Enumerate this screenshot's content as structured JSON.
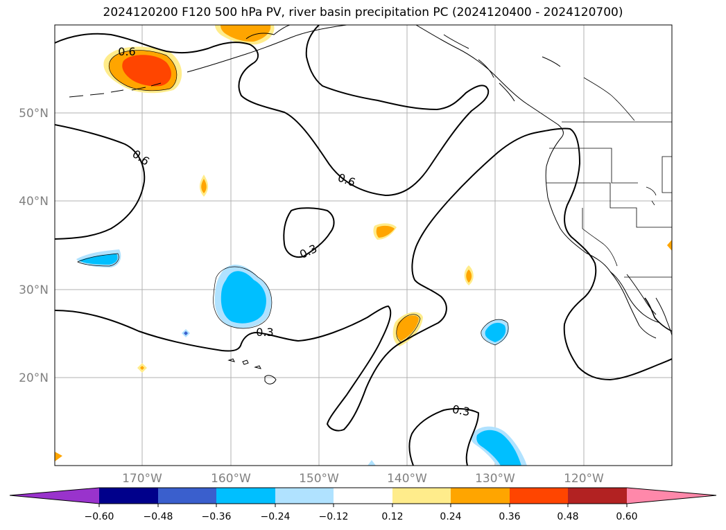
{
  "title": "2024120200 F120 500 hPa PV, river basin precipitation PC (2024120400 - 2024120700)",
  "map": {
    "lat_labels": [
      "50°N",
      "40°N",
      "30°N",
      "20°N"
    ],
    "lon_labels": [
      "170°W",
      "160°W",
      "150°W",
      "140°W",
      "130°W",
      "120°W"
    ],
    "contour_labels": [
      "0.6",
      "0.6",
      "0.6",
      "0.3",
      "0.3",
      "0.3"
    ]
  },
  "colorbar": {
    "tick_labels": [
      "−0.60",
      "−0.48",
      "−0.36",
      "−0.24",
      "−0.12",
      "0.12",
      "0.24",
      "0.36",
      "0.48",
      "0.60"
    ],
    "colors": [
      "#9933cc",
      "#00008b",
      "#3a5fcd",
      "#00bfff",
      "#b0e2ff",
      "#ffffff",
      "#ffec8b",
      "#ffa500",
      "#ff4500",
      "#b22222",
      "#ff88aa"
    ]
  }
}
